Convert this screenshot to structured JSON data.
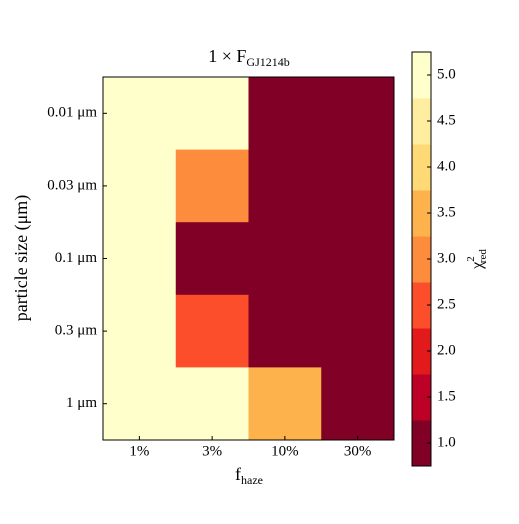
{
  "chart_data": {
    "type": "heatmap",
    "title": {
      "text": "1 × F",
      "subscript": "GJ1214b"
    },
    "xlabel": {
      "text": "f",
      "subscript": "haze"
    },
    "ylabel": "particle size (μm)",
    "x_categories": [
      "1%",
      "3%",
      "10%",
      "30%"
    ],
    "y_categories": [
      "0.01 μm",
      "0.03 μm",
      "0.1 μm",
      "0.3 μm",
      "1 μm"
    ],
    "values": [
      [
        5.0,
        5.0,
        1.0,
        1.0
      ],
      [
        5.0,
        3.0,
        1.0,
        1.0
      ],
      [
        5.0,
        1.0,
        1.0,
        1.0
      ],
      [
        5.0,
        2.5,
        1.0,
        1.0
      ],
      [
        5.0,
        5.0,
        3.5,
        1.0
      ]
    ],
    "colorbar": {
      "label": {
        "text": "χ",
        "superscript": "2",
        "subscript": "red"
      },
      "lim": [
        0.75,
        5.25
      ],
      "ticks": [
        {
          "value": 1,
          "label": "1.0"
        },
        1.5,
        {
          "value": 2,
          "label": "2.0"
        },
        2.5,
        {
          "value": 3,
          "label": "3.0"
        },
        3.5,
        {
          "value": 4,
          "label": "4.0"
        },
        4.5,
        {
          "value": 5,
          "label": "5.0"
        }
      ],
      "colors": [
        "#800026",
        "#bd0026",
        "#e31a1c",
        "#fc4e2a",
        "#fd8d3c",
        "#feb24c",
        "#fed976",
        "#ffeda0",
        "#ffffcc"
      ]
    }
  }
}
